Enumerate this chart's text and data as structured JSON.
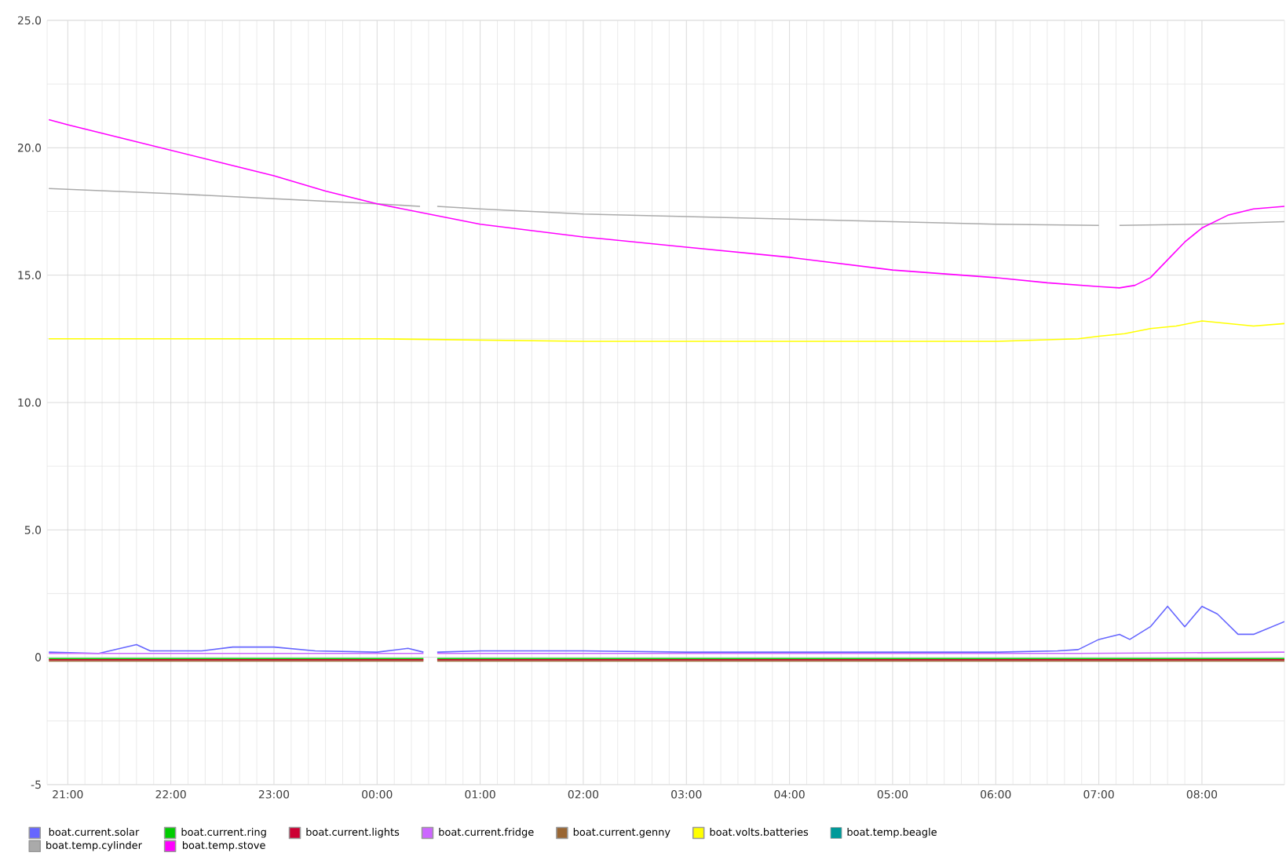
{
  "chart_data": {
    "type": "line",
    "xlim": [
      "2000-01-01T20:48",
      "2000-01-02T08:48"
    ],
    "ylim": [
      -5,
      25
    ],
    "xticks": [
      {
        "value": "2000-01-01T21:00",
        "label": "21:00"
      },
      {
        "value": "2000-01-01T22:00",
        "label": "22:00"
      },
      {
        "value": "2000-01-01T23:00",
        "label": "23:00"
      },
      {
        "value": "2000-01-02T00:00",
        "label": "00:00"
      },
      {
        "value": "2000-01-02T01:00",
        "label": "01:00"
      },
      {
        "value": "2000-01-02T02:00",
        "label": "02:00"
      },
      {
        "value": "2000-01-02T03:00",
        "label": "03:00"
      },
      {
        "value": "2000-01-02T04:00",
        "label": "04:00"
      },
      {
        "value": "2000-01-02T05:00",
        "label": "05:00"
      },
      {
        "value": "2000-01-02T06:00",
        "label": "06:00"
      },
      {
        "value": "2000-01-02T07:00",
        "label": "07:00"
      },
      {
        "value": "2000-01-02T08:00",
        "label": "08:00"
      }
    ],
    "yticks": [
      {
        "value": -5,
        "label": "-5"
      },
      {
        "value": 0,
        "label": "0"
      },
      {
        "value": 5,
        "label": "5.0"
      },
      {
        "value": 10,
        "label": "10.0"
      },
      {
        "value": 15,
        "label": "15.0"
      },
      {
        "value": 20,
        "label": "20.0"
      },
      {
        "value": 25,
        "label": "25.0"
      }
    ],
    "grid": true,
    "legend": "bottom",
    "series": [
      {
        "name": "boat.current.solar",
        "color": "#6666ff",
        "x": [
          "2000-01-01T20:49",
          "2000-01-01T21:18",
          "2000-01-01T21:40",
          "2000-01-01T21:48",
          "2000-01-01T22:18",
          "2000-01-01T22:36",
          "2000-01-01T23:00",
          "2000-01-01T23:24",
          "2000-01-02T00:00",
          "2000-01-02T00:18",
          "2000-01-02T00:27",
          "2000-01-02T00:30",
          "2000-01-02T00:35",
          "2000-01-02T01:00",
          "2000-01-02T02:00",
          "2000-01-02T03:00",
          "2000-01-02T04:00",
          "2000-01-02T05:00",
          "2000-01-02T06:00",
          "2000-01-02T06:36",
          "2000-01-02T06:48",
          "2000-01-02T07:00",
          "2000-01-02T07:12",
          "2000-01-02T07:18",
          "2000-01-02T07:30",
          "2000-01-02T07:40",
          "2000-01-02T07:50",
          "2000-01-02T08:00",
          "2000-01-02T08:09",
          "2000-01-02T08:21",
          "2000-01-02T08:30",
          "2000-01-02T08:48"
        ],
        "values": [
          0.2,
          0.15,
          0.5,
          0.25,
          0.25,
          0.4,
          0.4,
          0.25,
          0.2,
          0.35,
          0.2,
          null,
          0.2,
          0.25,
          0.25,
          0.2,
          0.2,
          0.2,
          0.2,
          0.25,
          0.3,
          0.7,
          0.9,
          0.7,
          1.2,
          2.0,
          1.2,
          2.0,
          1.7,
          0.9,
          0.9,
          1.4
        ]
      },
      {
        "name": "boat.current.ring",
        "color": "#00cc00",
        "x": [
          "2000-01-01T20:49",
          "2000-01-02T00:27",
          "2000-01-02T00:30",
          "2000-01-02T00:35",
          "2000-01-02T08:48"
        ],
        "values": [
          -0.05,
          -0.05,
          null,
          -0.05,
          -0.05
        ]
      },
      {
        "name": "boat.current.lights",
        "color": "#cc0033",
        "x": [
          "2000-01-01T20:49",
          "2000-01-02T00:27",
          "2000-01-02T00:30",
          "2000-01-02T00:35",
          "2000-01-02T08:48"
        ],
        "values": [
          -0.1,
          -0.1,
          null,
          -0.1,
          -0.1
        ]
      },
      {
        "name": "boat.current.fridge",
        "color": "#cc66ff",
        "x": [
          "2000-01-01T20:49",
          "2000-01-02T00:27",
          "2000-01-02T00:30",
          "2000-01-02T00:35",
          "2000-01-02T06:48",
          "2000-01-02T08:48"
        ],
        "values": [
          0.15,
          0.15,
          null,
          0.15,
          0.15,
          0.2
        ]
      },
      {
        "name": "boat.current.genny",
        "color": "#996633",
        "x": [
          "2000-01-01T20:49",
          "2000-01-02T00:27",
          "2000-01-02T00:30",
          "2000-01-02T00:35",
          "2000-01-02T08:48"
        ],
        "values": [
          -0.15,
          -0.15,
          null,
          -0.15,
          -0.15
        ]
      },
      {
        "name": "boat.volts.batteries",
        "color": "#ffff00",
        "x": [
          "2000-01-01T20:49",
          "2000-01-01T22:00",
          "2000-01-02T00:00",
          "2000-01-02T02:00",
          "2000-01-02T04:00",
          "2000-01-02T06:00",
          "2000-01-02T06:48",
          "2000-01-02T07:00",
          "2000-01-02T07:15",
          "2000-01-02T07:30",
          "2000-01-02T07:45",
          "2000-01-02T08:00",
          "2000-01-02T08:15",
          "2000-01-02T08:30",
          "2000-01-02T08:48"
        ],
        "values": [
          12.5,
          12.5,
          12.5,
          12.4,
          12.4,
          12.4,
          12.5,
          12.6,
          12.7,
          12.9,
          13.0,
          13.2,
          13.1,
          13.0,
          13.1
        ]
      },
      {
        "name": "boat.temp.beagle",
        "color": "#009999"
      },
      {
        "name": "boat.temp.cylinder",
        "color": "#aaaaaa",
        "x": [
          "2000-01-01T20:49",
          "2000-01-01T22:00",
          "2000-01-01T23:00",
          "2000-01-02T00:00",
          "2000-01-02T00:25",
          "2000-01-02T00:30",
          "2000-01-02T00:35",
          "2000-01-02T01:00",
          "2000-01-02T02:00",
          "2000-01-02T03:00",
          "2000-01-02T04:00",
          "2000-01-02T05:00",
          "2000-01-02T06:00",
          "2000-01-02T07:00",
          "2000-01-02T07:06",
          "2000-01-02T07:12",
          "2000-01-02T08:00",
          "2000-01-02T08:48"
        ],
        "values": [
          18.4,
          18.2,
          18.0,
          17.8,
          17.7,
          null,
          17.7,
          17.6,
          17.4,
          17.3,
          17.2,
          17.1,
          17.0,
          16.95,
          null,
          16.95,
          17.0,
          17.1
        ]
      },
      {
        "name": "boat.temp.stove",
        "color": "#ff00ff",
        "x": [
          "2000-01-01T20:49",
          "2000-01-01T21:00",
          "2000-01-01T21:30",
          "2000-01-01T22:00",
          "2000-01-01T22:30",
          "2000-01-01T23:00",
          "2000-01-01T23:30",
          "2000-01-02T00:00",
          "2000-01-02T00:30",
          "2000-01-02T01:00",
          "2000-01-02T02:00",
          "2000-01-02T03:00",
          "2000-01-02T04:00",
          "2000-01-02T05:00",
          "2000-01-02T06:00",
          "2000-01-02T06:30",
          "2000-01-02T07:00",
          "2000-01-02T07:12",
          "2000-01-02T07:21",
          "2000-01-02T07:30",
          "2000-01-02T07:40",
          "2000-01-02T07:50",
          "2000-01-02T08:00",
          "2000-01-02T08:15",
          "2000-01-02T08:30",
          "2000-01-02T08:48"
        ],
        "values": [
          21.1,
          20.9,
          20.4,
          19.9,
          19.4,
          18.9,
          18.3,
          17.8,
          17.4,
          17.0,
          16.5,
          16.1,
          15.7,
          15.2,
          14.9,
          14.7,
          14.55,
          14.5,
          14.6,
          14.9,
          15.6,
          16.3,
          16.85,
          17.35,
          17.6,
          17.7
        ]
      }
    ]
  }
}
